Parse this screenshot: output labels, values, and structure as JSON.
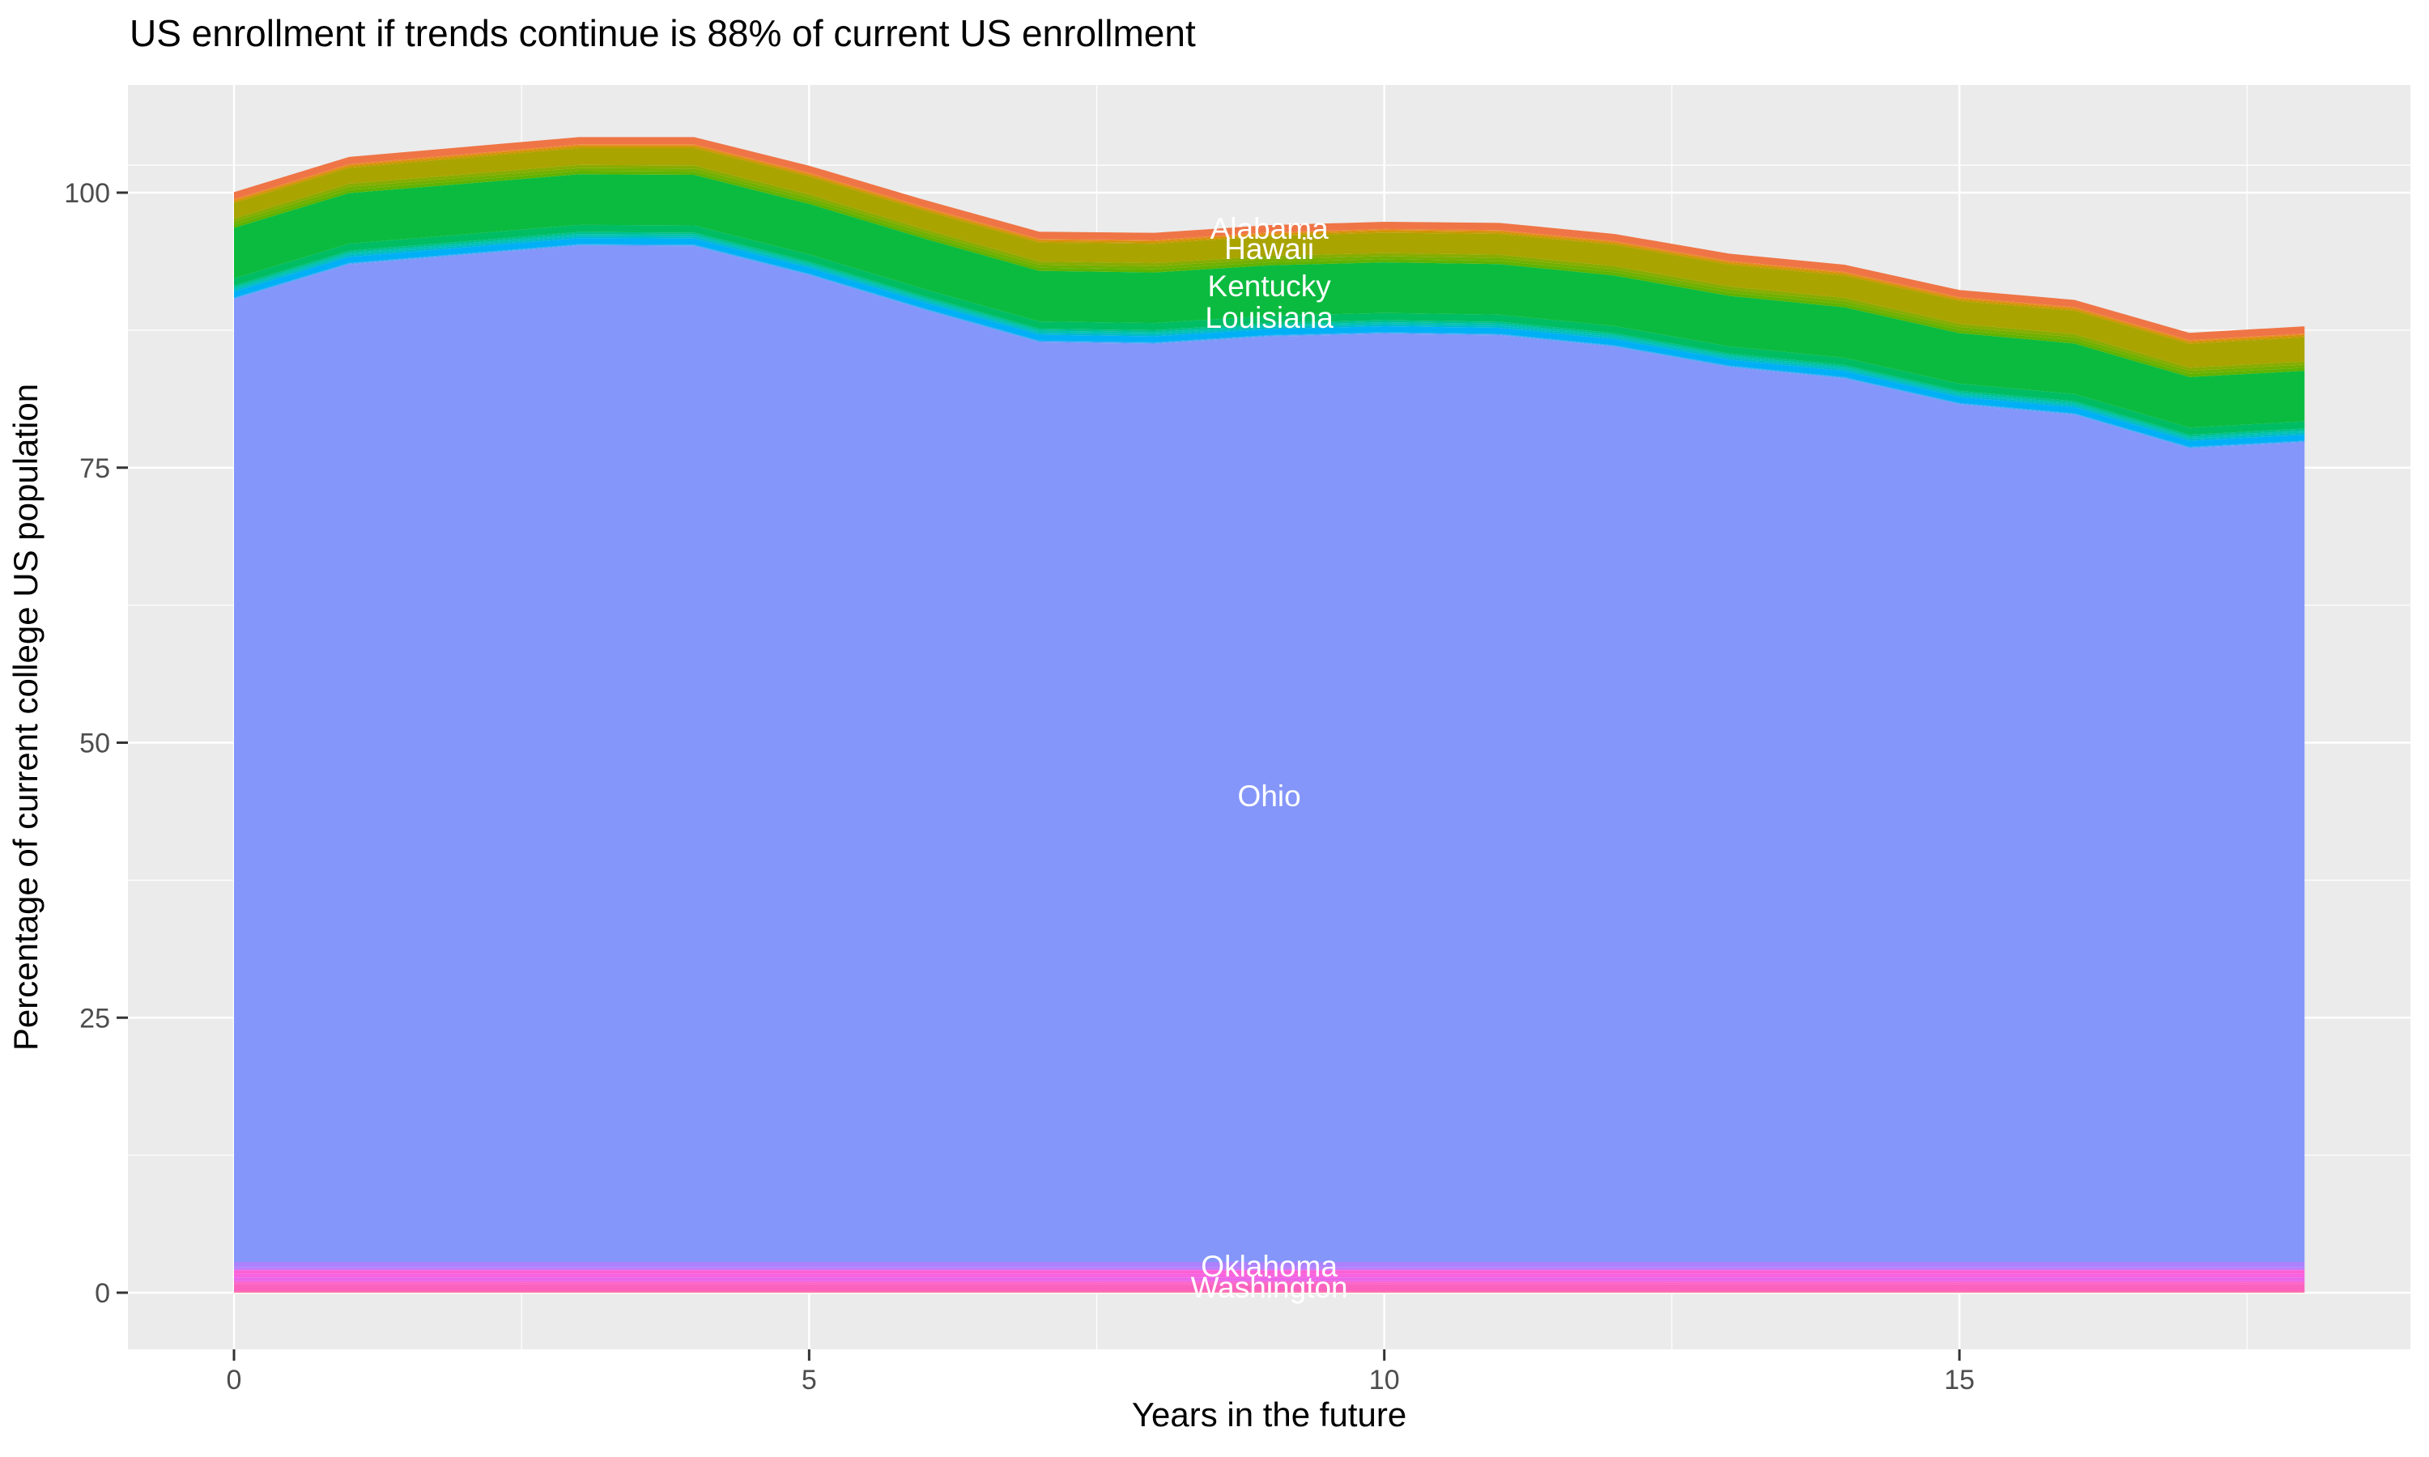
{
  "title": "US enrollment if trends continue is 88% of current US enrollment",
  "chart_data": {
    "type": "area",
    "stacked": true,
    "title": "US enrollment if trends continue is 88% of current US enrollment",
    "xlabel": "Years in the future",
    "ylabel": "Percentage of current college US population",
    "x": [
      0,
      1,
      2,
      3,
      4,
      5,
      6,
      7,
      8,
      9,
      10,
      11,
      12,
      13,
      14,
      15,
      16,
      17,
      18
    ],
    "x_ticks": [
      0,
      5,
      10,
      15
    ],
    "y_ticks": [
      0,
      25,
      50,
      75,
      100
    ],
    "x_minor_ticks": [
      2.5,
      7.5,
      12.5,
      17.5
    ],
    "y_minor_ticks": [
      12.5,
      37.5,
      62.5,
      87.5,
      102.5
    ],
    "xlim": [
      -0.92,
      18.9
    ],
    "ylim": [
      -5.15,
      109.8
    ],
    "grid": true,
    "legend": "none",
    "panel_background": "#EBEBEB",
    "gridline_color": "#FFFFFF",
    "tick_label_color": "#4D4D4D",
    "total_top_edge": [
      100,
      103.2,
      104.1,
      105,
      105,
      102.4,
      99.3,
      96.4,
      96.3,
      97,
      97.3,
      97.2,
      96.2,
      94.4,
      93.4,
      91.1,
      90.2,
      87.2,
      87.8
    ],
    "series": [
      {
        "id": "other-wv-wy",
        "name": "other states (unlabeled, below Washington)",
        "labeled": false,
        "colors": [
          "#FE6494",
          "#FF6C92"
        ],
        "values": 0.1
      },
      {
        "id": "washington",
        "name": "Washington",
        "labeled": true,
        "colors": [
          "#FA62BE"
        ],
        "values": 0.65
      },
      {
        "id": "other-ut-va",
        "name": "other states (unlabeled, pink band)",
        "labeled": false,
        "colors": [
          "#FC61C8",
          "#F961CE"
        ],
        "values": 0.3
      },
      {
        "id": "other-sc-tx",
        "name": "other states (unlabeled, magenta band)",
        "labeled": false,
        "colors": [
          "#E966E9",
          "#F763E0",
          "#FD61D5"
        ],
        "values": 1.0
      },
      {
        "id": "other-or-ri",
        "name": "other states (unlabeled, violet band)",
        "labeled": false,
        "colors": [
          "#C87CFB",
          "#BC7EFB"
        ],
        "values": 0.25
      },
      {
        "id": "oklahoma",
        "name": "Oklahoma",
        "labeled": true,
        "colors": [
          "#AB82FC"
        ],
        "values": 0.5
      },
      {
        "id": "ohio",
        "name": "Ohio",
        "labeled": true,
        "colors": [
          "#8496F9"
        ],
        "values": [
          87.5,
          90.66,
          91.51,
          92.37,
          92.32,
          89.68,
          86.53,
          83.59,
          83.44,
          84.1,
          84.36,
          84.21,
          83.17,
          81.32,
          80.28,
          77.93,
          76.99,
          73.94,
          74.5
        ]
      },
      {
        "id": "other-nh-nd",
        "name": "other states (unlabeled, light-blue band)",
        "labeled": false,
        "colors": [
          "#619CF8",
          "#39A8F9"
        ],
        "values": 0.15
      },
      {
        "id": "other-cyan",
        "name": "other states (unlabeled, cyan band)",
        "labeled": false,
        "colors": [
          "#00B0F6"
        ],
        "values": 0.55
      },
      {
        "id": "other-me-ne",
        "name": "other states (unlabeled, teal band)",
        "labeled": false,
        "colors": [
          "#00BACB",
          "#00C2B2",
          "#00C18E"
        ],
        "values": 0.55
      },
      {
        "id": "louisiana",
        "name": "Louisiana",
        "labeled": true,
        "colors": [
          "#00BD64"
        ],
        "values": 0.65
      },
      {
        "id": "kentucky",
        "name": "Kentucky",
        "labeled": true,
        "colors": [
          "#0BBB3F"
        ],
        "values": 4.6
      },
      {
        "id": "other-id-ks",
        "name": "other states (unlabeled, yellow-green band)",
        "labeled": false,
        "colors": [
          "#5EB300",
          "#72B000",
          "#89AC00"
        ],
        "values": 0.85
      },
      {
        "id": "hawaii",
        "name": "Hawaii",
        "labeled": true,
        "colors": [
          "#A9A400"
        ],
        "values": [
          1.4,
          1.44,
          1.49,
          1.53,
          1.58,
          1.62,
          1.67,
          1.71,
          1.76,
          1.8,
          1.84,
          1.89,
          1.93,
          1.98,
          2.02,
          2.07,
          2.11,
          2.16,
          2.2
        ]
      },
      {
        "id": "other-ak-ga",
        "name": "other states (unlabeled, gold band)",
        "labeled": false,
        "colors": [
          "#C69900",
          "#D89000",
          "#E98A2B"
        ],
        "values": 0.35
      },
      {
        "id": "alabama",
        "name": "Alabama",
        "labeled": true,
        "colors": [
          "#EF7546"
        ],
        "values": 0.65
      }
    ],
    "state_labels": [
      {
        "text": "Alabama",
        "x": 9,
        "y": 96.75,
        "color": "#FFFFFF"
      },
      {
        "text": "Hawaii",
        "x": 9,
        "y": 94.92,
        "color": "#FFFFFF"
      },
      {
        "text": "Kentucky",
        "x": 9,
        "y": 91.54,
        "color": "#FFFFFF"
      },
      {
        "text": "Louisiana",
        "x": 9,
        "y": 88.67,
        "color": "#FFFFFF"
      },
      {
        "text": "Ohio",
        "x": 9,
        "y": 45.18,
        "color": "#FFFFFF"
      },
      {
        "text": "Oklahoma",
        "x": 9,
        "y": 2.43,
        "color": "#FFFFFF"
      },
      {
        "text": "Washington",
        "x": 9,
        "y": 0.52,
        "color": "#FFFFFF"
      }
    ]
  }
}
